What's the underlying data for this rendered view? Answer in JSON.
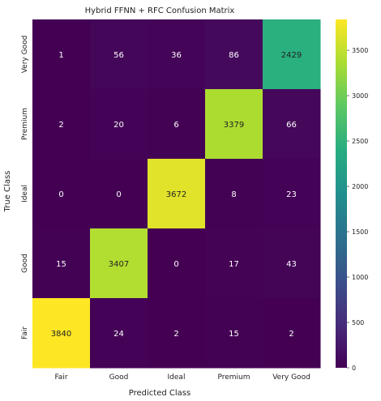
{
  "chart_data": {
    "type": "heatmap",
    "title": "Hybrid FFNN + RFC Confusion Matrix",
    "xlabel": "Predicted Class",
    "ylabel": "True Class",
    "x_categories": [
      "Fair",
      "Good",
      "Ideal",
      "Premium",
      "Very Good"
    ],
    "y_categories": [
      "Very Good",
      "Premium",
      "Ideal",
      "Good",
      "Fair"
    ],
    "values": [
      [
        1,
        56,
        36,
        86,
        2429
      ],
      [
        2,
        20,
        6,
        3379,
        66
      ],
      [
        0,
        0,
        3672,
        8,
        23
      ],
      [
        15,
        3407,
        0,
        17,
        43
      ],
      [
        3840,
        24,
        2,
        15,
        2
      ]
    ],
    "colormap": "viridis",
    "colorbar": {
      "min": 0,
      "max": 3840,
      "ticks": [
        0,
        500,
        1000,
        1500,
        2000,
        2500,
        3000,
        3500
      ]
    }
  }
}
